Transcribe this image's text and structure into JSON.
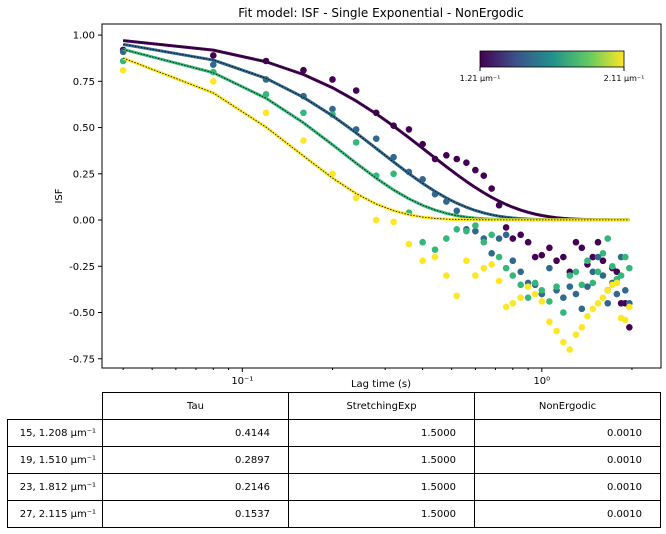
{
  "chart_data": {
    "type": "scatter",
    "title": "Fit model: ISF - Single Exponential - NonErgodic",
    "xlabel": "Lag time (s)",
    "ylabel": "ISF",
    "xscale": "log",
    "xlim": [
      0.034,
      2.5
    ],
    "ylim": [
      -0.8,
      1.06
    ],
    "x_ticks": [
      {
        "value": 0.1,
        "label": "10⁻¹"
      },
      {
        "value": 1,
        "label": "10⁰"
      }
    ],
    "y_ticks": [
      -0.75,
      -0.5,
      -0.25,
      0.0,
      0.25,
      0.5,
      0.75,
      1.0
    ],
    "colorbar": {
      "min_label": "1.21 μm⁻¹",
      "max_label": "2.11 μm⁻¹",
      "colormap": [
        "#440154",
        "#3b528b",
        "#21918c",
        "#5ec962",
        "#fde725"
      ],
      "placement": "upper-right"
    },
    "series": [
      {
        "color": "#440154",
        "fit": {
          "tau": 0.4144,
          "stretch": 1.5,
          "nonergodic": 0.001
        },
        "x": [
          0.04,
          0.08,
          0.12,
          0.16,
          0.2,
          0.24,
          0.28,
          0.32,
          0.36,
          0.4,
          0.44,
          0.48,
          0.52,
          0.56,
          0.6,
          0.64,
          0.68,
          0.72,
          0.76,
          0.8,
          0.85,
          0.9,
          0.95,
          1.0,
          1.06,
          1.12,
          1.18,
          1.24,
          1.3,
          1.36,
          1.42,
          1.48,
          1.54,
          1.6,
          1.66,
          1.72,
          1.78,
          1.84,
          1.9,
          1.96
        ],
        "y": [
          0.92,
          0.89,
          0.86,
          0.81,
          0.76,
          0.7,
          0.58,
          0.51,
          0.49,
          0.41,
          0.33,
          0.35,
          0.33,
          0.31,
          0.27,
          0.24,
          0.17,
          0.08,
          -0.04,
          -0.1,
          -0.08,
          -0.12,
          -0.2,
          -0.19,
          -0.15,
          -0.22,
          -0.2,
          -0.28,
          -0.12,
          -0.15,
          -0.24,
          -0.2,
          -0.12,
          -0.22,
          -0.38,
          -0.26,
          -0.28,
          -0.45,
          -0.45,
          -0.58
        ]
      },
      {
        "color": "#31688e",
        "fit": {
          "tau": 0.2897,
          "stretch": 1.5,
          "nonergodic": 0.001
        },
        "x": [
          0.04,
          0.08,
          0.12,
          0.16,
          0.2,
          0.24,
          0.28,
          0.32,
          0.36,
          0.4,
          0.44,
          0.48,
          0.52,
          0.56,
          0.6,
          0.64,
          0.68,
          0.72,
          0.76,
          0.8,
          0.85,
          0.9,
          0.95,
          1.0,
          1.06,
          1.12,
          1.18,
          1.24,
          1.3,
          1.36,
          1.42,
          1.48,
          1.54,
          1.6,
          1.66,
          1.72,
          1.78,
          1.84,
          1.9,
          1.96
        ],
        "y": [
          0.91,
          0.84,
          0.76,
          0.67,
          0.6,
          0.49,
          0.44,
          0.34,
          0.26,
          0.22,
          0.14,
          0.1,
          0.05,
          -0.05,
          -0.06,
          -0.1,
          -0.18,
          -0.1,
          -0.08,
          -0.22,
          -0.28,
          -0.34,
          -0.35,
          -0.4,
          -0.26,
          -0.38,
          -0.42,
          -0.36,
          -0.4,
          -0.48,
          -0.36,
          -0.28,
          -0.2,
          -0.3,
          -0.45,
          -0.34,
          -0.4,
          -0.2,
          -0.38,
          -0.45
        ]
      },
      {
        "color": "#35b779",
        "fit": {
          "tau": 0.2146,
          "stretch": 1.5,
          "nonergodic": 0.001
        },
        "x": [
          0.04,
          0.08,
          0.12,
          0.16,
          0.2,
          0.24,
          0.28,
          0.32,
          0.36,
          0.4,
          0.44,
          0.48,
          0.52,
          0.56,
          0.6,
          0.64,
          0.68,
          0.72,
          0.76,
          0.8,
          0.85,
          0.9,
          0.95,
          1.0,
          1.06,
          1.12,
          1.18,
          1.24,
          1.3,
          1.36,
          1.42,
          1.48,
          1.54,
          1.6,
          1.66,
          1.72,
          1.78,
          1.84,
          1.9,
          1.96
        ],
        "y": [
          0.86,
          0.8,
          0.68,
          0.58,
          0.57,
          0.42,
          0.24,
          0.25,
          0.04,
          -0.12,
          -0.16,
          -0.1,
          -0.05,
          -0.06,
          -0.03,
          -0.12,
          -0.08,
          -0.2,
          -0.26,
          -0.3,
          -0.35,
          -0.42,
          -0.34,
          -0.38,
          -0.44,
          -0.36,
          -0.5,
          -0.3,
          -0.28,
          -0.35,
          -0.22,
          -0.34,
          -0.28,
          -0.18,
          -0.1,
          -0.25,
          -0.32,
          -0.3,
          -0.2,
          -0.26
        ]
      },
      {
        "color": "#fde725",
        "fit": {
          "tau": 0.1537,
          "stretch": 1.5,
          "nonergodic": 0.001
        },
        "x": [
          0.04,
          0.08,
          0.12,
          0.16,
          0.2,
          0.24,
          0.28,
          0.32,
          0.36,
          0.4,
          0.44,
          0.48,
          0.52,
          0.56,
          0.6,
          0.64,
          0.68,
          0.72,
          0.76,
          0.8,
          0.85,
          0.9,
          0.95,
          1.0,
          1.06,
          1.12,
          1.18,
          1.24,
          1.3,
          1.36,
          1.42,
          1.48,
          1.54,
          1.6,
          1.66,
          1.72,
          1.78,
          1.84,
          1.9,
          1.96
        ],
        "y": [
          0.81,
          0.75,
          0.58,
          0.43,
          0.25,
          0.12,
          0.0,
          -0.01,
          -0.13,
          -0.22,
          -0.2,
          -0.3,
          -0.41,
          -0.22,
          -0.3,
          -0.26,
          -0.24,
          -0.33,
          -0.47,
          -0.45,
          -0.42,
          -0.36,
          -0.4,
          -0.44,
          -0.55,
          -0.6,
          -0.66,
          -0.7,
          -0.62,
          -0.58,
          -0.52,
          -0.48,
          -0.45,
          -0.42,
          -0.38,
          -0.35,
          -0.34,
          -0.53,
          -0.54,
          -0.47
        ]
      }
    ]
  },
  "table": {
    "headers": [
      "",
      "Tau",
      "StretchingExp",
      "NonErgodic"
    ],
    "rows": [
      {
        "label": "15, 1.208 μm⁻¹",
        "tau": "0.4144",
        "stretch": "1.5000",
        "nonergodic": "0.0010"
      },
      {
        "label": "19, 1.510 μm⁻¹",
        "tau": "0.2897",
        "stretch": "1.5000",
        "nonergodic": "0.0010"
      },
      {
        "label": "23, 1.812 μm⁻¹",
        "tau": "0.2146",
        "stretch": "1.5000",
        "nonergodic": "0.0010"
      },
      {
        "label": "27, 2.115 μm⁻¹",
        "tau": "0.1537",
        "stretch": "1.5000",
        "nonergodic": "0.0010"
      }
    ]
  }
}
